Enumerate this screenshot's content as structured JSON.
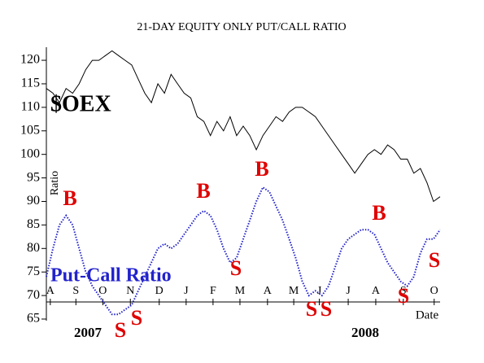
{
  "chart_data": {
    "type": "line",
    "title": "21-DAY EQUITY ONLY PUT/CALL RATIO",
    "y_label": "Ratio",
    "x_label": "Date",
    "xlim": [
      0,
      60
    ],
    "xticks": [
      {
        "value": 0.6,
        "label": "A"
      },
      {
        "value": 4.5,
        "label": "S"
      },
      {
        "value": 8.6,
        "label": "O"
      },
      {
        "value": 12.8,
        "label": "N"
      },
      {
        "value": 17.2,
        "label": "D"
      },
      {
        "value": 21.3,
        "label": "J"
      },
      {
        "value": 25.4,
        "label": "F"
      },
      {
        "value": 29.5,
        "label": "M"
      },
      {
        "value": 33.7,
        "label": "A"
      },
      {
        "value": 37.7,
        "label": "M"
      },
      {
        "value": 41.6,
        "label": "J"
      },
      {
        "value": 46,
        "label": "J"
      },
      {
        "value": 50.2,
        "label": "A"
      },
      {
        "value": 54.4,
        "label": "S"
      },
      {
        "value": 59.1,
        "label": "O"
      }
    ],
    "ylim": [
      65,
      122
    ],
    "yticks": [
      65,
      70,
      75,
      80,
      85,
      90,
      95,
      100,
      105,
      110,
      115,
      120
    ],
    "year_labels": [
      "2007",
      "2008"
    ],
    "series": [
      {
        "name": "$OEX",
        "color": "#000000",
        "values": [
          114,
          113,
          111,
          114,
          113,
          115,
          118,
          120,
          120,
          121,
          122,
          121,
          120,
          119,
          116,
          113,
          111,
          115,
          113,
          117,
          115,
          113,
          112,
          108,
          107,
          104,
          107,
          105,
          108,
          104,
          106,
          104,
          101,
          104,
          106,
          108,
          107,
          109,
          110,
          110,
          109,
          108,
          106,
          104,
          102,
          100,
          98,
          96,
          98,
          100,
          101,
          100,
          102,
          101,
          99,
          99,
          96,
          97,
          94,
          90,
          91
        ]
      },
      {
        "name": "Put-Call Ratio",
        "color": "#2222cc",
        "values": [
          74,
          80,
          85,
          87,
          85,
          80,
          75,
          72,
          70,
          68,
          66,
          66,
          67,
          68,
          71,
          74,
          77,
          80,
          81,
          80,
          81,
          83,
          85,
          87,
          88,
          87,
          84,
          80,
          77,
          78,
          82,
          86,
          90,
          93,
          92,
          89,
          86,
          82,
          78,
          73,
          70,
          71,
          70,
          72,
          76,
          80,
          82,
          83,
          84,
          84,
          83,
          80,
          77,
          75,
          73,
          72,
          74,
          79,
          82,
          82,
          84
        ]
      }
    ],
    "annotations": [
      "B",
      "B",
      "B",
      "B",
      "S",
      "S",
      "S",
      "S",
      "S",
      "S",
      "S"
    ],
    "annotation_color": "#e00000"
  }
}
